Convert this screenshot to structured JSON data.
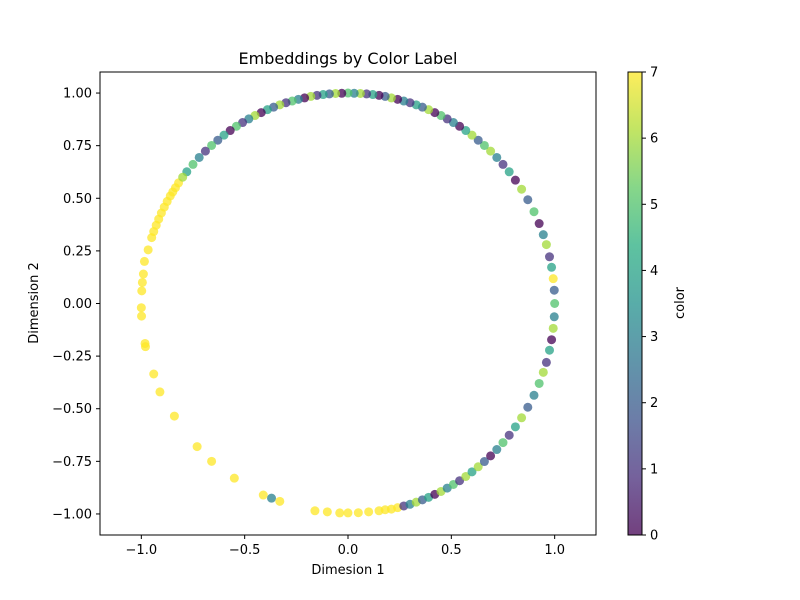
{
  "chart_data": {
    "type": "scatter",
    "title": "Embeddings by Color Label",
    "xlabel": "Dimesion 1",
    "ylabel": "Dimension 2",
    "xlim": [
      -1.2,
      1.2
    ],
    "ylim": [
      -1.1,
      1.1
    ],
    "x_ticks": [
      -1.0,
      -0.5,
      0.0,
      0.5,
      1.0
    ],
    "x_tick_labels": [
      "−1.0",
      "−0.5",
      "0.0",
      "0.5",
      "1.0"
    ],
    "y_ticks": [
      1.0,
      0.75,
      0.5,
      0.25,
      0.0,
      -0.25,
      -0.5,
      -0.75,
      -1.0
    ],
    "y_tick_labels": [
      "1.00",
      "0.75",
      "0.50",
      "0.25",
      "0.00",
      "−0.25",
      "−0.50",
      "−0.75",
      "−1.00"
    ],
    "grid": false,
    "marker_alpha": 0.75,
    "colorbar": {
      "label": "color",
      "colormap": "viridis",
      "range": [
        0,
        7
      ],
      "ticks": [
        0,
        1,
        2,
        3,
        4,
        5,
        6,
        7
      ],
      "tick_labels": [
        "0",
        "1",
        "2",
        "3",
        "4",
        "5",
        "6",
        "7"
      ],
      "colors": [
        "#440154",
        "#472d7b",
        "#3b528b",
        "#2c728e",
        "#21918c",
        "#28ae80",
        "#5ec962",
        "#addc30",
        "#fde725"
      ]
    },
    "points": [
      {
        "x": -0.967,
        "y": 0.255,
        "c": 7
      },
      {
        "x": -0.95,
        "y": 0.313,
        "c": 7
      },
      {
        "x": -0.94,
        "y": 0.342,
        "c": 7
      },
      {
        "x": -0.928,
        "y": 0.372,
        "c": 7
      },
      {
        "x": -0.916,
        "y": 0.401,
        "c": 7
      },
      {
        "x": -0.903,
        "y": 0.43,
        "c": 7
      },
      {
        "x": -0.889,
        "y": 0.458,
        "c": 7
      },
      {
        "x": -0.875,
        "y": 0.485,
        "c": 7
      },
      {
        "x": -0.86,
        "y": 0.511,
        "c": 7
      },
      {
        "x": -0.848,
        "y": 0.53,
        "c": 7
      },
      {
        "x": -0.835,
        "y": 0.55,
        "c": 7
      },
      {
        "x": -0.82,
        "y": 0.573,
        "c": 7
      },
      {
        "x": -0.985,
        "y": 0.2,
        "c": 7
      },
      {
        "x": -0.99,
        "y": 0.14,
        "c": 7
      },
      {
        "x": -0.995,
        "y": 0.1,
        "c": 7
      },
      {
        "x": -0.998,
        "y": 0.06,
        "c": 7
      },
      {
        "x": -1.0,
        "y": -0.02,
        "c": 7
      },
      {
        "x": -0.999,
        "y": -0.06,
        "c": 7
      },
      {
        "x": -0.982,
        "y": -0.19,
        "c": 7
      },
      {
        "x": -0.98,
        "y": -0.205,
        "c": 7
      },
      {
        "x": -0.94,
        "y": -0.335,
        "c": 7
      },
      {
        "x": -0.91,
        "y": -0.42,
        "c": 7
      },
      {
        "x": -0.84,
        "y": -0.535,
        "c": 7
      },
      {
        "x": -0.73,
        "y": -0.68,
        "c": 7
      },
      {
        "x": -0.66,
        "y": -0.75,
        "c": 7
      },
      {
        "x": -0.55,
        "y": -0.83,
        "c": 7
      },
      {
        "x": -0.41,
        "y": -0.91,
        "c": 7
      },
      {
        "x": -0.37,
        "y": -0.925,
        "c": 3
      },
      {
        "x": -0.33,
        "y": -0.94,
        "c": 7
      },
      {
        "x": -0.16,
        "y": -0.985,
        "c": 7
      },
      {
        "x": -0.1,
        "y": -0.99,
        "c": 7
      },
      {
        "x": -0.04,
        "y": -0.995,
        "c": 7
      },
      {
        "x": 0.0,
        "y": -0.995,
        "c": 7
      },
      {
        "x": 0.05,
        "y": -0.994,
        "c": 7
      },
      {
        "x": 0.1,
        "y": -0.99,
        "c": 7
      },
      {
        "x": 0.15,
        "y": -0.985,
        "c": 7
      },
      {
        "x": 0.18,
        "y": -0.98,
        "c": 7
      },
      {
        "x": 0.21,
        "y": -0.977,
        "c": 7
      },
      {
        "x": 0.24,
        "y": -0.97,
        "c": 7
      },
      {
        "x": 0.27,
        "y": -0.962,
        "c": 1
      },
      {
        "x": 0.3,
        "y": -0.954,
        "c": 3
      },
      {
        "x": 0.33,
        "y": -0.944,
        "c": 6
      },
      {
        "x": 0.36,
        "y": -0.933,
        "c": 2
      },
      {
        "x": 0.39,
        "y": -0.921,
        "c": 4
      },
      {
        "x": 0.42,
        "y": -0.907,
        "c": 0
      },
      {
        "x": 0.45,
        "y": -0.893,
        "c": 6
      },
      {
        "x": 0.48,
        "y": -0.877,
        "c": 3
      },
      {
        "x": 0.51,
        "y": -0.86,
        "c": 5
      },
      {
        "x": 0.54,
        "y": -0.842,
        "c": 1
      },
      {
        "x": 0.57,
        "y": -0.822,
        "c": 6
      },
      {
        "x": 0.6,
        "y": -0.8,
        "c": 4
      },
      {
        "x": 0.63,
        "y": -0.776,
        "c": 6
      },
      {
        "x": 0.66,
        "y": -0.751,
        "c": 2
      },
      {
        "x": 0.69,
        "y": -0.724,
        "c": 0
      },
      {
        "x": 0.72,
        "y": -0.694,
        "c": 3
      },
      {
        "x": 0.75,
        "y": -0.661,
        "c": 5
      },
      {
        "x": 0.78,
        "y": -0.626,
        "c": 1
      },
      {
        "x": 0.81,
        "y": -0.586,
        "c": 4
      },
      {
        "x": 0.84,
        "y": -0.543,
        "c": 6
      },
      {
        "x": 0.87,
        "y": -0.493,
        "c": 2
      },
      {
        "x": 0.9,
        "y": -0.436,
        "c": 3
      },
      {
        "x": 0.925,
        "y": -0.38,
        "c": 5
      },
      {
        "x": 0.945,
        "y": -0.327,
        "c": 6
      },
      {
        "x": 0.96,
        "y": -0.28,
        "c": 1
      },
      {
        "x": 0.975,
        "y": -0.222,
        "c": 4
      },
      {
        "x": 0.985,
        "y": -0.172,
        "c": 0
      },
      {
        "x": 0.993,
        "y": -0.118,
        "c": 6
      },
      {
        "x": 0.998,
        "y": -0.063,
        "c": 3
      },
      {
        "x": 1.0,
        "y": 0.0,
        "c": 5
      },
      {
        "x": 0.998,
        "y": 0.063,
        "c": 2
      },
      {
        "x": 0.993,
        "y": 0.118,
        "c": 7
      },
      {
        "x": 0.985,
        "y": 0.172,
        "c": 4
      },
      {
        "x": 0.975,
        "y": 0.222,
        "c": 1
      },
      {
        "x": 0.96,
        "y": 0.28,
        "c": 6
      },
      {
        "x": 0.945,
        "y": 0.327,
        "c": 3
      },
      {
        "x": 0.925,
        "y": 0.38,
        "c": 0
      },
      {
        "x": 0.9,
        "y": 0.436,
        "c": 5
      },
      {
        "x": 0.87,
        "y": 0.493,
        "c": 2
      },
      {
        "x": 0.84,
        "y": 0.543,
        "c": 6
      },
      {
        "x": 0.81,
        "y": 0.586,
        "c": 0
      },
      {
        "x": 0.78,
        "y": 0.626,
        "c": 4
      },
      {
        "x": 0.75,
        "y": 0.661,
        "c": 1
      },
      {
        "x": 0.72,
        "y": 0.694,
        "c": 3
      },
      {
        "x": 0.69,
        "y": 0.724,
        "c": 6
      },
      {
        "x": 0.66,
        "y": 0.751,
        "c": 5
      },
      {
        "x": 0.63,
        "y": 0.776,
        "c": 2
      },
      {
        "x": 0.6,
        "y": 0.8,
        "c": 6
      },
      {
        "x": 0.57,
        "y": 0.822,
        "c": 4
      },
      {
        "x": 0.54,
        "y": 0.842,
        "c": 0
      },
      {
        "x": 0.51,
        "y": 0.86,
        "c": 3
      },
      {
        "x": 0.48,
        "y": 0.877,
        "c": 1
      },
      {
        "x": 0.45,
        "y": 0.893,
        "c": 5
      },
      {
        "x": 0.42,
        "y": 0.907,
        "c": 0
      },
      {
        "x": 0.39,
        "y": 0.921,
        "c": 6
      },
      {
        "x": 0.36,
        "y": 0.933,
        "c": 2
      },
      {
        "x": 0.33,
        "y": 0.944,
        "c": 4
      },
      {
        "x": 0.3,
        "y": 0.954,
        "c": 1
      },
      {
        "x": 0.27,
        "y": 0.962,
        "c": 3
      },
      {
        "x": 0.24,
        "y": 0.97,
        "c": 0
      },
      {
        "x": 0.21,
        "y": 0.977,
        "c": 6
      },
      {
        "x": 0.18,
        "y": 0.984,
        "c": 2
      },
      {
        "x": 0.15,
        "y": 0.989,
        "c": 0
      },
      {
        "x": 0.12,
        "y": 0.993,
        "c": 4
      },
      {
        "x": 0.09,
        "y": 0.996,
        "c": 1
      },
      {
        "x": 0.06,
        "y": 0.998,
        "c": 6
      },
      {
        "x": 0.03,
        "y": 0.999,
        "c": 3
      },
      {
        "x": 0.0,
        "y": 1.0,
        "c": 5
      },
      {
        "x": -0.03,
        "y": 0.999,
        "c": 0
      },
      {
        "x": -0.06,
        "y": 0.998,
        "c": 6
      },
      {
        "x": -0.09,
        "y": 0.996,
        "c": 2
      },
      {
        "x": -0.12,
        "y": 0.993,
        "c": 4
      },
      {
        "x": -0.15,
        "y": 0.989,
        "c": 1
      },
      {
        "x": -0.18,
        "y": 0.984,
        "c": 6
      },
      {
        "x": -0.21,
        "y": 0.977,
        "c": 0
      },
      {
        "x": -0.24,
        "y": 0.97,
        "c": 3
      },
      {
        "x": -0.27,
        "y": 0.962,
        "c": 5
      },
      {
        "x": -0.3,
        "y": 0.954,
        "c": 1
      },
      {
        "x": -0.33,
        "y": 0.944,
        "c": 6
      },
      {
        "x": -0.36,
        "y": 0.933,
        "c": 2
      },
      {
        "x": -0.39,
        "y": 0.921,
        "c": 4
      },
      {
        "x": -0.42,
        "y": 0.907,
        "c": 0
      },
      {
        "x": -0.45,
        "y": 0.893,
        "c": 6
      },
      {
        "x": -0.48,
        "y": 0.877,
        "c": 3
      },
      {
        "x": -0.51,
        "y": 0.86,
        "c": 1
      },
      {
        "x": -0.54,
        "y": 0.842,
        "c": 5
      },
      {
        "x": -0.57,
        "y": 0.822,
        "c": 0
      },
      {
        "x": -0.6,
        "y": 0.8,
        "c": 4
      },
      {
        "x": -0.63,
        "y": 0.776,
        "c": 2
      },
      {
        "x": -0.66,
        "y": 0.751,
        "c": 5
      },
      {
        "x": -0.69,
        "y": 0.724,
        "c": 1
      },
      {
        "x": -0.72,
        "y": 0.694,
        "c": 3
      },
      {
        "x": -0.75,
        "y": 0.661,
        "c": 5
      },
      {
        "x": -0.78,
        "y": 0.626,
        "c": 4
      },
      {
        "x": -0.8,
        "y": 0.6,
        "c": 6
      }
    ]
  }
}
